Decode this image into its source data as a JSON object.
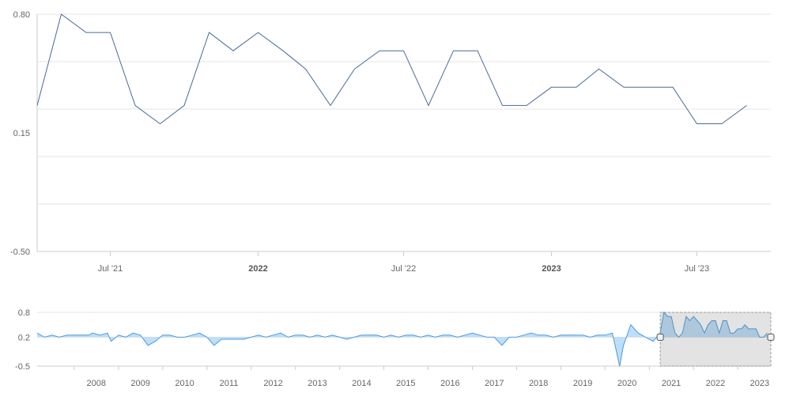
{
  "chart_data": [
    {
      "type": "line",
      "role": "main-chart",
      "y_ticks": [
        "0.80",
        "0.15",
        "-0.50"
      ],
      "ylim": [
        -0.5,
        0.8
      ],
      "grid": true,
      "x_ticks": [
        {
          "label": "Jul '21",
          "date": "2021-07-01",
          "bold": false
        },
        {
          "label": "2022",
          "date": "2022-01-01",
          "bold": true
        },
        {
          "label": "Jul '22",
          "date": "2022-07-01",
          "bold": false
        },
        {
          "label": "2023",
          "date": "2023-01-01",
          "bold": true
        },
        {
          "label": "Jul '23",
          "date": "2023-07-01",
          "bold": false
        }
      ],
      "xlim": [
        "2021-04-01",
        "2023-10-01"
      ],
      "series": [
        {
          "color": "#4a6a94",
          "x": [
            "2021-04-01",
            "2021-05-01",
            "2021-06-01",
            "2021-07-01",
            "2021-08-01",
            "2021-09-01",
            "2021-10-01",
            "2021-11-01",
            "2021-12-01",
            "2022-01-01",
            "2022-02-01",
            "2022-03-01",
            "2022-04-01",
            "2022-05-01",
            "2022-06-01",
            "2022-07-01",
            "2022-08-01",
            "2022-09-01",
            "2022-10-01",
            "2022-11-01",
            "2022-12-01",
            "2023-01-01",
            "2023-02-01",
            "2023-03-01",
            "2023-04-01",
            "2023-05-01",
            "2023-06-01",
            "2023-07-01",
            "2023-08-01",
            "2023-09-01"
          ],
          "values": [
            0.3,
            0.8,
            0.7,
            0.7,
            0.3,
            0.2,
            0.3,
            0.7,
            0.6,
            0.7,
            0.6,
            0.5,
            0.3,
            0.5,
            0.6,
            0.6,
            0.3,
            0.6,
            0.6,
            0.3,
            0.3,
            0.4,
            0.4,
            0.5,
            0.4,
            0.4,
            0.4,
            0.2,
            0.2,
            0.3
          ]
        }
      ]
    },
    {
      "type": "area",
      "role": "navigator",
      "y_ticks": [
        "0.8",
        "0.2",
        "-0.5"
      ],
      "ylim": [
        -0.5,
        0.8
      ],
      "x_ticks": [
        "2008",
        "2009",
        "2010",
        "2011",
        "2012",
        "2013",
        "2014",
        "2015",
        "2016",
        "2017",
        "2018",
        "2019",
        "2020",
        "2021",
        "2022",
        "2023"
      ],
      "xlim": [
        "2007-03-01",
        "2023-10-01"
      ],
      "selected_range": [
        "2021-04-01",
        "2023-09-01"
      ],
      "series_color": "#4a9be0",
      "samples": [
        [
          "2007-03",
          0.3
        ],
        [
          "2007-05",
          0.2
        ],
        [
          "2007-07",
          0.25
        ],
        [
          "2007-09",
          0.2
        ],
        [
          "2007-11",
          0.25
        ],
        [
          "2008-01",
          0.25
        ],
        [
          "2008-03",
          0.25
        ],
        [
          "2008-05",
          0.25
        ],
        [
          "2008-06",
          0.3
        ],
        [
          "2008-08",
          0.25
        ],
        [
          "2008-10",
          0.3
        ],
        [
          "2008-11",
          0.1
        ],
        [
          "2009-01",
          0.25
        ],
        [
          "2009-03",
          0.2
        ],
        [
          "2009-05",
          0.3
        ],
        [
          "2009-07",
          0.25
        ],
        [
          "2009-09",
          0.0
        ],
        [
          "2009-11",
          0.1
        ],
        [
          "2010-01",
          0.25
        ],
        [
          "2010-03",
          0.25
        ],
        [
          "2010-05",
          0.2
        ],
        [
          "2010-07",
          0.2
        ],
        [
          "2010-09",
          0.25
        ],
        [
          "2010-11",
          0.3
        ],
        [
          "2011-01",
          0.2
        ],
        [
          "2011-03",
          0.0
        ],
        [
          "2011-05",
          0.15
        ],
        [
          "2011-07",
          0.15
        ],
        [
          "2011-09",
          0.15
        ],
        [
          "2011-11",
          0.15
        ],
        [
          "2012-01",
          0.2
        ],
        [
          "2012-03",
          0.25
        ],
        [
          "2012-05",
          0.2
        ],
        [
          "2012-07",
          0.25
        ],
        [
          "2012-09",
          0.3
        ],
        [
          "2012-11",
          0.2
        ],
        [
          "2013-01",
          0.25
        ],
        [
          "2013-03",
          0.25
        ],
        [
          "2013-05",
          0.2
        ],
        [
          "2013-07",
          0.25
        ],
        [
          "2013-09",
          0.2
        ],
        [
          "2013-11",
          0.25
        ],
        [
          "2014-01",
          0.2
        ],
        [
          "2014-03",
          0.15
        ],
        [
          "2014-05",
          0.2
        ],
        [
          "2014-07",
          0.25
        ],
        [
          "2014-09",
          0.25
        ],
        [
          "2014-11",
          0.25
        ],
        [
          "2015-01",
          0.2
        ],
        [
          "2015-03",
          0.25
        ],
        [
          "2015-05",
          0.2
        ],
        [
          "2015-07",
          0.25
        ],
        [
          "2015-09",
          0.25
        ],
        [
          "2015-11",
          0.2
        ],
        [
          "2016-01",
          0.25
        ],
        [
          "2016-03",
          0.2
        ],
        [
          "2016-05",
          0.25
        ],
        [
          "2016-07",
          0.25
        ],
        [
          "2016-09",
          0.2
        ],
        [
          "2016-11",
          0.25
        ],
        [
          "2017-01",
          0.3
        ],
        [
          "2017-03",
          0.25
        ],
        [
          "2017-05",
          0.2
        ],
        [
          "2017-07",
          0.2
        ],
        [
          "2017-09",
          0.0
        ],
        [
          "2017-11",
          0.2
        ],
        [
          "2018-01",
          0.2
        ],
        [
          "2018-03",
          0.25
        ],
        [
          "2018-05",
          0.3
        ],
        [
          "2018-07",
          0.25
        ],
        [
          "2018-09",
          0.25
        ],
        [
          "2018-11",
          0.2
        ],
        [
          "2019-01",
          0.25
        ],
        [
          "2019-03",
          0.25
        ],
        [
          "2019-05",
          0.25
        ],
        [
          "2019-07",
          0.25
        ],
        [
          "2019-09",
          0.2
        ],
        [
          "2019-11",
          0.25
        ],
        [
          "2020-01",
          0.25
        ],
        [
          "2020-03",
          0.3
        ],
        [
          "2020-04",
          -0.1
        ],
        [
          "2020-05",
          -0.5
        ],
        [
          "2020-06",
          0.0
        ],
        [
          "2020-08",
          0.5
        ],
        [
          "2020-10",
          0.3
        ],
        [
          "2020-12",
          0.2
        ],
        [
          "2021-02",
          0.1
        ],
        [
          "2021-04",
          0.3
        ],
        [
          "2021-05",
          0.8
        ],
        [
          "2021-06",
          0.7
        ],
        [
          "2021-07",
          0.7
        ],
        [
          "2021-08",
          0.3
        ],
        [
          "2021-09",
          0.2
        ],
        [
          "2021-10",
          0.3
        ],
        [
          "2021-11",
          0.7
        ],
        [
          "2021-12",
          0.6
        ],
        [
          "2022-01",
          0.7
        ],
        [
          "2022-02",
          0.6
        ],
        [
          "2022-03",
          0.5
        ],
        [
          "2022-04",
          0.3
        ],
        [
          "2022-05",
          0.5
        ],
        [
          "2022-06",
          0.6
        ],
        [
          "2022-07",
          0.6
        ],
        [
          "2022-08",
          0.3
        ],
        [
          "2022-09",
          0.6
        ],
        [
          "2022-10",
          0.6
        ],
        [
          "2022-11",
          0.3
        ],
        [
          "2022-12",
          0.3
        ],
        [
          "2023-01",
          0.4
        ],
        [
          "2023-02",
          0.4
        ],
        [
          "2023-03",
          0.5
        ],
        [
          "2023-04",
          0.4
        ],
        [
          "2023-05",
          0.4
        ],
        [
          "2023-06",
          0.4
        ],
        [
          "2023-07",
          0.2
        ],
        [
          "2023-08",
          0.2
        ],
        [
          "2023-09",
          0.3
        ]
      ]
    }
  ]
}
